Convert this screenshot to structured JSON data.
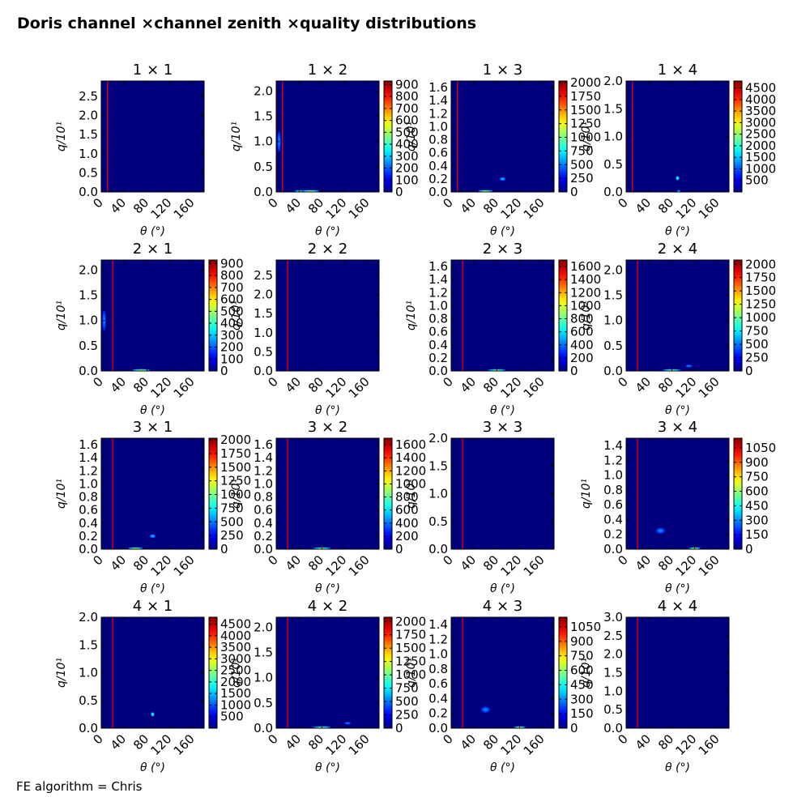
{
  "figure": {
    "title": "Doris channel ×channel zenith ×quality distributions",
    "footer": "FE algorithm = Chris",
    "panel_title_sep": " × "
  },
  "chart_data": [
    {
      "type": "heatmap",
      "row": 1,
      "col": 1,
      "title": "1 × 1",
      "xlabel": "θ (°)",
      "ylabel": "q/10¹",
      "xlim": [
        0,
        180
      ],
      "xticks": [
        0,
        40,
        80,
        120,
        160
      ],
      "ylim": [
        0,
        2.9
      ],
      "yticks": [
        "0.0",
        "0.5",
        "1.0",
        "1.5",
        "2.0",
        "2.5"
      ],
      "ytick_values": [
        0,
        0.5,
        1.0,
        1.5,
        2.0,
        2.5
      ],
      "vline_x": 11,
      "colorbar": null,
      "hotspots": []
    },
    {
      "type": "heatmap",
      "row": 1,
      "col": 2,
      "title": "1 × 2",
      "xlabel": "θ (°)",
      "ylabel": "q/10¹",
      "xlim": [
        0,
        180
      ],
      "xticks": [
        0,
        40,
        80,
        120,
        160
      ],
      "ylim": [
        0,
        2.2
      ],
      "yticks": [
        "0.0",
        "0.5",
        "1.0",
        "1.5",
        "2.0"
      ],
      "ytick_values": [
        0,
        0.5,
        1.0,
        1.5,
        2.0
      ],
      "vline_x": 11,
      "colorbar": {
        "ticks": [
          0,
          100,
          200,
          300,
          400,
          500,
          600,
          700,
          800,
          900
        ],
        "max": 930
      },
      "hotspots": [
        {
          "x": 60,
          "y": 0.01,
          "level": 0.5,
          "xw": 30,
          "yh": 0.02
        },
        {
          "x": 40,
          "y": 0.01,
          "level": 0.4,
          "xw": 15,
          "yh": 0.02
        },
        {
          "x": 5,
          "y": 1.0,
          "level": 0.15,
          "xw": 6,
          "yh": 0.4
        }
      ]
    },
    {
      "type": "heatmap",
      "row": 1,
      "col": 3,
      "title": "1 × 3",
      "xlabel": "θ (°)",
      "ylabel": "q/10¹",
      "xlim": [
        0,
        180
      ],
      "xticks": [
        0,
        40,
        80,
        120,
        160
      ],
      "ylim": [
        0,
        1.7
      ],
      "yticks": [
        "0.0",
        "0.2",
        "0.4",
        "0.6",
        "0.8",
        "1.0",
        "1.2",
        "1.4",
        "1.6"
      ],
      "ytick_values": [
        0,
        0.2,
        0.4,
        0.6,
        0.8,
        1.0,
        1.2,
        1.4,
        1.6
      ],
      "vline_x": 11,
      "colorbar": {
        "ticks": [
          0,
          250,
          500,
          750,
          1000,
          1250,
          1500,
          1750,
          2000
        ],
        "max": 2030
      },
      "hotspots": [
        {
          "x": 60,
          "y": 0.01,
          "level": 0.5,
          "xw": 25,
          "yh": 0.02
        },
        {
          "x": 90,
          "y": 0.2,
          "level": 0.2,
          "xw": 10,
          "yh": 0.06
        }
      ]
    },
    {
      "type": "heatmap",
      "row": 1,
      "col": 4,
      "title": "1 × 4",
      "xlabel": "θ (°)",
      "ylabel": "q/10¹",
      "xlim": [
        0,
        180
      ],
      "xticks": [
        0,
        40,
        80,
        120,
        160
      ],
      "ylim": [
        0,
        2.0
      ],
      "yticks": [
        "0.0",
        "0.5",
        "1.0",
        "1.5",
        "2.0"
      ],
      "ytick_values": [
        0,
        0.5,
        1.0,
        1.5,
        2.0
      ],
      "vline_x": 11,
      "colorbar": {
        "ticks": [
          500,
          1000,
          1500,
          2000,
          2500,
          3000,
          3500,
          4000,
          4500
        ],
        "max": 4800
      },
      "hotspots": [
        {
          "x": 90,
          "y": 0.25,
          "level": 0.35,
          "xw": 6,
          "yh": 0.08
        },
        {
          "x": 92,
          "y": 0.01,
          "level": 0.3,
          "xw": 6,
          "yh": 0.02
        }
      ]
    },
    {
      "type": "heatmap",
      "row": 2,
      "col": 1,
      "title": "2 × 1",
      "xlabel": "θ (°)",
      "ylabel": "q/10¹",
      "xlim": [
        0,
        180
      ],
      "xticks": [
        0,
        40,
        80,
        120,
        160
      ],
      "ylim": [
        0,
        2.2
      ],
      "yticks": [
        "0.0",
        "0.5",
        "1.0",
        "1.5",
        "2.0"
      ],
      "ytick_values": [
        0,
        0.5,
        1.0,
        1.5,
        2.0
      ],
      "vline_x": 20,
      "colorbar": {
        "ticks": [
          0,
          100,
          200,
          300,
          400,
          500,
          600,
          700,
          800,
          900
        ],
        "max": 930
      },
      "hotspots": [
        {
          "x": 70,
          "y": 0.01,
          "level": 0.5,
          "xw": 30,
          "yh": 0.02
        },
        {
          "x": 5,
          "y": 1.0,
          "level": 0.15,
          "xw": 6,
          "yh": 0.4
        }
      ]
    },
    {
      "type": "heatmap",
      "row": 2,
      "col": 2,
      "title": "2 × 2",
      "xlabel": "θ (°)",
      "ylabel": "q/10¹",
      "xlim": [
        0,
        180
      ],
      "xticks": [
        0,
        40,
        80,
        120,
        160
      ],
      "ylim": [
        0,
        2.9
      ],
      "yticks": [
        "0.0",
        "0.5",
        "1.0",
        "1.5",
        "2.0",
        "2.5"
      ],
      "ytick_values": [
        0,
        0.5,
        1.0,
        1.5,
        2.0,
        2.5
      ],
      "vline_x": 20,
      "colorbar": null,
      "hotspots": []
    },
    {
      "type": "heatmap",
      "row": 2,
      "col": 3,
      "title": "2 × 3",
      "xlabel": "θ (°)",
      "ylabel": "q/10¹",
      "xlim": [
        0,
        180
      ],
      "xticks": [
        0,
        40,
        80,
        120,
        160
      ],
      "ylim": [
        0,
        1.7
      ],
      "yticks": [
        "0.0",
        "0.2",
        "0.4",
        "0.6",
        "0.8",
        "1.0",
        "1.2",
        "1.4",
        "1.6"
      ],
      "ytick_values": [
        0,
        0.2,
        0.4,
        0.6,
        0.8,
        1.0,
        1.2,
        1.4,
        1.6
      ],
      "vline_x": 20,
      "colorbar": {
        "ticks": [
          0,
          200,
          400,
          600,
          800,
          1000,
          1200,
          1400,
          1600
        ],
        "max": 1700
      },
      "hotspots": [
        {
          "x": 80,
          "y": 0.01,
          "level": 0.45,
          "xw": 30,
          "yh": 0.02
        }
      ]
    },
    {
      "type": "heatmap",
      "row": 2,
      "col": 4,
      "title": "2 × 4",
      "xlabel": "θ (°)",
      "ylabel": "q/10¹",
      "xlim": [
        0,
        180
      ],
      "xticks": [
        0,
        40,
        80,
        120,
        160
      ],
      "ylim": [
        0,
        2.2
      ],
      "yticks": [
        "0.0",
        "0.5",
        "1.0",
        "1.5",
        "2.0"
      ],
      "ytick_values": [
        0,
        0.5,
        1.0,
        1.5,
        2.0
      ],
      "vline_x": 20,
      "colorbar": {
        "ticks": [
          0,
          250,
          500,
          750,
          1000,
          1250,
          1500,
          1750,
          2000
        ],
        "max": 2080
      },
      "hotspots": [
        {
          "x": 80,
          "y": 0.01,
          "level": 0.45,
          "xw": 30,
          "yh": 0.02
        },
        {
          "x": 110,
          "y": 0.1,
          "level": 0.15,
          "xw": 12,
          "yh": 0.05
        }
      ]
    },
    {
      "type": "heatmap",
      "row": 3,
      "col": 1,
      "title": "3 × 1",
      "xlabel": "θ (°)",
      "ylabel": "q/10¹",
      "xlim": [
        0,
        180
      ],
      "xticks": [
        0,
        40,
        80,
        120,
        160
      ],
      "ylim": [
        0,
        1.7
      ],
      "yticks": [
        "0.0",
        "0.2",
        "0.4",
        "0.6",
        "0.8",
        "1.0",
        "1.2",
        "1.4",
        "1.6"
      ],
      "ytick_values": [
        0,
        0.2,
        0.4,
        0.6,
        0.8,
        1.0,
        1.2,
        1.4,
        1.6
      ],
      "vline_x": 20,
      "colorbar": {
        "ticks": [
          0,
          250,
          500,
          750,
          1000,
          1250,
          1500,
          1750,
          2000
        ],
        "max": 2030
      },
      "hotspots": [
        {
          "x": 60,
          "y": 0.01,
          "level": 0.5,
          "xw": 25,
          "yh": 0.02
        },
        {
          "x": 90,
          "y": 0.2,
          "level": 0.2,
          "xw": 10,
          "yh": 0.06
        }
      ]
    },
    {
      "type": "heatmap",
      "row": 3,
      "col": 2,
      "title": "3 × 2",
      "xlabel": "θ (°)",
      "ylabel": "q/10¹",
      "xlim": [
        0,
        180
      ],
      "xticks": [
        0,
        40,
        80,
        120,
        160
      ],
      "ylim": [
        0,
        1.7
      ],
      "yticks": [
        "0.0",
        "0.2",
        "0.4",
        "0.6",
        "0.8",
        "1.0",
        "1.2",
        "1.4",
        "1.6"
      ],
      "ytick_values": [
        0,
        0.2,
        0.4,
        0.6,
        0.8,
        1.0,
        1.2,
        1.4,
        1.6
      ],
      "vline_x": 20,
      "colorbar": {
        "ticks": [
          0,
          200,
          400,
          600,
          800,
          1000,
          1200,
          1400,
          1600
        ],
        "max": 1700
      },
      "hotspots": [
        {
          "x": 80,
          "y": 0.01,
          "level": 0.45,
          "xw": 30,
          "yh": 0.02
        }
      ]
    },
    {
      "type": "heatmap",
      "row": 3,
      "col": 3,
      "title": "3 × 3",
      "xlabel": "θ (°)",
      "ylabel": "q/10¹",
      "xlim": [
        0,
        180
      ],
      "xticks": [
        0,
        40,
        80,
        120,
        160
      ],
      "ylim": [
        0,
        2.0
      ],
      "yticks": [
        "0.0",
        "0.5",
        "1.0",
        "1.5",
        "2.0"
      ],
      "ytick_values": [
        0,
        0.5,
        1.0,
        1.5,
        2.0
      ],
      "vline_x": 20,
      "colorbar": null,
      "hotspots": []
    },
    {
      "type": "heatmap",
      "row": 3,
      "col": 4,
      "title": "3 × 4",
      "xlabel": "θ (°)",
      "ylabel": "q/10¹",
      "xlim": [
        0,
        180
      ],
      "xticks": [
        0,
        40,
        80,
        120,
        160
      ],
      "ylim": [
        0,
        1.5
      ],
      "yticks": [
        "0.0",
        "0.2",
        "0.4",
        "0.6",
        "0.8",
        "1.0",
        "1.2",
        "1.4"
      ],
      "ytick_values": [
        0,
        0.2,
        0.4,
        0.6,
        0.8,
        1.0,
        1.2,
        1.4
      ],
      "vline_x": 20,
      "colorbar": {
        "ticks": [
          0,
          150,
          300,
          450,
          600,
          750,
          900,
          1050
        ],
        "max": 1150
      },
      "hotspots": [
        {
          "x": 120,
          "y": 0.01,
          "level": 0.5,
          "xw": 20,
          "yh": 0.02
        },
        {
          "x": 60,
          "y": 0.25,
          "level": 0.15,
          "xw": 15,
          "yh": 0.08
        }
      ]
    },
    {
      "type": "heatmap",
      "row": 4,
      "col": 1,
      "title": "4 × 1",
      "xlabel": "θ (°)",
      "ylabel": "q/10¹",
      "xlim": [
        0,
        180
      ],
      "xticks": [
        0,
        40,
        80,
        120,
        160
      ],
      "ylim": [
        0,
        2.0
      ],
      "yticks": [
        "0.0",
        "0.5",
        "1.0",
        "1.5",
        "2.0"
      ],
      "ytick_values": [
        0,
        0.5,
        1.0,
        1.5,
        2.0
      ],
      "vline_x": 20,
      "colorbar": {
        "ticks": [
          500,
          1000,
          1500,
          2000,
          2500,
          3000,
          3500,
          4000,
          4500
        ],
        "max": 4800
      },
      "hotspots": [
        {
          "x": 90,
          "y": 0.25,
          "level": 0.35,
          "xw": 6,
          "yh": 0.08
        }
      ]
    },
    {
      "type": "heatmap",
      "row": 4,
      "col": 2,
      "title": "4 × 2",
      "xlabel": "θ (°)",
      "ylabel": "q/10¹",
      "xlim": [
        0,
        180
      ],
      "xticks": [
        0,
        40,
        80,
        120,
        160
      ],
      "ylim": [
        0,
        2.2
      ],
      "yticks": [
        "0.0",
        "0.5",
        "1.0",
        "1.5",
        "2.0"
      ],
      "ytick_values": [
        0,
        0.5,
        1.0,
        1.5,
        2.0
      ],
      "vline_x": 20,
      "colorbar": {
        "ticks": [
          0,
          250,
          500,
          750,
          1000,
          1250,
          1500,
          1750,
          2000
        ],
        "max": 2080
      },
      "hotspots": [
        {
          "x": 80,
          "y": 0.01,
          "level": 0.45,
          "xw": 30,
          "yh": 0.02
        },
        {
          "x": 125,
          "y": 0.1,
          "level": 0.15,
          "xw": 12,
          "yh": 0.05
        }
      ]
    },
    {
      "type": "heatmap",
      "row": 4,
      "col": 3,
      "title": "4 × 3",
      "xlabel": "θ (°)",
      "ylabel": "q/10¹",
      "xlim": [
        0,
        180
      ],
      "xticks": [
        0,
        40,
        80,
        120,
        160
      ],
      "ylim": [
        0,
        1.5
      ],
      "yticks": [
        "0.0",
        "0.2",
        "0.4",
        "0.6",
        "0.8",
        "1.0",
        "1.2",
        "1.4"
      ],
      "ytick_values": [
        0,
        0.2,
        0.4,
        0.6,
        0.8,
        1.0,
        1.2,
        1.4
      ],
      "vline_x": 20,
      "colorbar": {
        "ticks": [
          0,
          150,
          300,
          450,
          600,
          750,
          900,
          1050
        ],
        "max": 1150
      },
      "hotspots": [
        {
          "x": 120,
          "y": 0.01,
          "level": 0.5,
          "xw": 20,
          "yh": 0.02
        },
        {
          "x": 60,
          "y": 0.25,
          "level": 0.15,
          "xw": 15,
          "yh": 0.08
        }
      ]
    },
    {
      "type": "heatmap",
      "row": 4,
      "col": 4,
      "title": "4 × 4",
      "xlabel": "θ (°)",
      "ylabel": "q/10¹",
      "xlim": [
        0,
        180
      ],
      "xticks": [
        0,
        40,
        80,
        120,
        160
      ],
      "ylim": [
        0,
        3.0
      ],
      "yticks": [
        "0.0",
        "0.5",
        "1.0",
        "1.5",
        "2.0",
        "2.5",
        "3.0"
      ],
      "ytick_values": [
        0,
        0.5,
        1.0,
        1.5,
        2.0,
        2.5,
        3.0
      ],
      "vline_x": 20,
      "colorbar": null,
      "hotspots": []
    }
  ],
  "colors": {
    "background_level": "#00007f",
    "vline": "#ff0000",
    "colormap": "jet"
  }
}
